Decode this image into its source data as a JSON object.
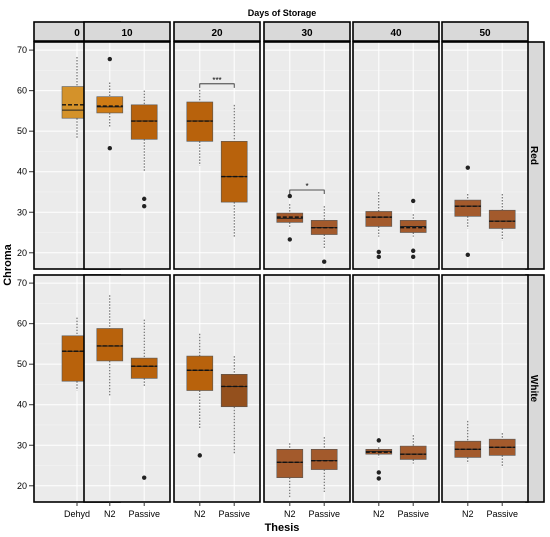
{
  "chart_data": {
    "type": "boxplot",
    "title": "Days of Storage",
    "xlabel": "Thesis",
    "ylabel": "Chroma",
    "ylim": [
      16,
      72
    ],
    "yticks": [
      20,
      30,
      40,
      50,
      60,
      70
    ],
    "grid": true,
    "legend": "none",
    "storage_days": [
      "0",
      "10",
      "20",
      "30",
      "40",
      "50"
    ],
    "rows": [
      "Red",
      "White"
    ],
    "colors": {
      "panel_bg": "#ebebeb",
      "grid": "#ffffff",
      "strip_bg": "#d9d9d9",
      "light_orange": "#d4922a",
      "orange": "#cf7b14",
      "dark_orange": "#b8620c",
      "brown": "#a35a2c",
      "dark_brown": "#94501d"
    },
    "panels": [
      {
        "day": "0",
        "row": "Red",
        "boxes": [
          {
            "thesis": "Dehyd",
            "color": "light_orange",
            "whisker_low": 48,
            "q1": 53.2,
            "median": 55.2,
            "mean": 56.5,
            "q3": 61,
            "whisker_high": 68.3,
            "outliers": []
          }
        ]
      },
      {
        "day": "10",
        "row": "Red",
        "boxes": [
          {
            "thesis": "N2",
            "color": "orange",
            "whisker_low": 51,
            "q1": 54.5,
            "median": 56,
            "mean": 56.2,
            "q3": 58.5,
            "whisker_high": 62,
            "outliers": [
              67.8,
              45.8
            ]
          },
          {
            "thesis": "Passive",
            "color": "dark_orange",
            "whisker_low": 40,
            "q1": 48,
            "median": 52.5,
            "mean": 52.5,
            "q3": 56.5,
            "whisker_high": 60,
            "outliers": [
              33.3,
              31.5
            ]
          }
        ]
      },
      {
        "day": "20",
        "row": "Red",
        "annotation": "***",
        "boxes": [
          {
            "thesis": "N2",
            "color": "dark_orange",
            "whisker_low": 41.5,
            "q1": 47.5,
            "median": 52.5,
            "mean": 52.5,
            "q3": 57.2,
            "whisker_high": 60.2,
            "outliers": []
          },
          {
            "thesis": "Passive",
            "color": "dark_orange",
            "whisker_low": 24,
            "q1": 32.5,
            "median": 38.8,
            "mean": 38.8,
            "q3": 47.5,
            "whisker_high": 56.5,
            "outliers": []
          }
        ]
      },
      {
        "day": "30",
        "row": "Red",
        "annotation": "*",
        "boxes": [
          {
            "thesis": "N2",
            "color": "brown",
            "whisker_low": 26,
            "q1": 27.5,
            "median": 28.5,
            "mean": 28.8,
            "q3": 29.8,
            "whisker_high": 32,
            "outliers": [
              34,
              23.3
            ]
          },
          {
            "thesis": "Passive",
            "color": "brown",
            "whisker_low": 21,
            "q1": 24.5,
            "median": 26.2,
            "mean": 26.2,
            "q3": 28,
            "whisker_high": 31.5,
            "outliers": [
              17.8
            ]
          }
        ]
      },
      {
        "day": "40",
        "row": "Red",
        "boxes": [
          {
            "thesis": "N2",
            "color": "brown",
            "whisker_low": 24,
            "q1": 26.5,
            "median": 28.8,
            "mean": 28.8,
            "q3": 30.2,
            "whisker_high": 35,
            "outliers": [
              20.2,
              19
            ]
          },
          {
            "thesis": "Passive",
            "color": "brown",
            "whisker_low": 24,
            "q1": 25,
            "median": 26.5,
            "mean": 26.2,
            "q3": 28,
            "whisker_high": 29.5,
            "outliers": [
              32.8,
              20.5,
              19
            ]
          }
        ]
      },
      {
        "day": "50",
        "row": "Red",
        "boxes": [
          {
            "thesis": "N2",
            "color": "brown",
            "whisker_low": 26,
            "q1": 29,
            "median": 31.5,
            "mean": 31.5,
            "q3": 33,
            "whisker_high": 34.5,
            "outliers": [
              41,
              19.5
            ]
          },
          {
            "thesis": "Passive",
            "color": "brown",
            "whisker_low": 23,
            "q1": 26,
            "median": 27.8,
            "mean": 27.8,
            "q3": 30.5,
            "whisker_high": 34.5,
            "outliers": []
          }
        ]
      },
      {
        "day": "0",
        "row": "White",
        "boxes": [
          {
            "thesis": "Dehyd",
            "color": "dark_orange",
            "whisker_low": 43.5,
            "q1": 45.8,
            "median": 53.2,
            "mean": 53.2,
            "q3": 57,
            "whisker_high": 61.5,
            "outliers": []
          }
        ]
      },
      {
        "day": "10",
        "row": "White",
        "boxes": [
          {
            "thesis": "N2",
            "color": "dark_orange",
            "whisker_low": 42,
            "q1": 50.8,
            "median": 54.5,
            "mean": 54.5,
            "q3": 58.8,
            "whisker_high": 67,
            "outliers": []
          },
          {
            "thesis": "Passive",
            "color": "dark_orange",
            "whisker_low": 44.5,
            "q1": 46.5,
            "median": 49.5,
            "mean": 49.5,
            "q3": 51.5,
            "whisker_high": 61,
            "outliers": [
              22
            ]
          }
        ]
      },
      {
        "day": "20",
        "row": "White",
        "boxes": [
          {
            "thesis": "N2",
            "color": "dark_orange",
            "whisker_low": 34,
            "q1": 43.5,
            "median": 48.5,
            "mean": 48.5,
            "q3": 52,
            "whisker_high": 57.5,
            "outliers": [
              27.5
            ]
          },
          {
            "thesis": "Passive",
            "color": "dark_brown",
            "whisker_low": 28,
            "q1": 39.5,
            "median": 44.5,
            "mean": 44.5,
            "q3": 47.5,
            "whisker_high": 52,
            "outliers": []
          }
        ]
      },
      {
        "day": "30",
        "row": "White",
        "boxes": [
          {
            "thesis": "N2",
            "color": "brown",
            "whisker_low": 17,
            "q1": 22,
            "median": 25.8,
            "mean": 25.8,
            "q3": 29,
            "whisker_high": 30.5,
            "outliers": []
          },
          {
            "thesis": "Passive",
            "color": "brown",
            "whisker_low": 18.5,
            "q1": 24,
            "median": 26.2,
            "mean": 26.2,
            "q3": 29,
            "whisker_high": 32,
            "outliers": []
          }
        ]
      },
      {
        "day": "40",
        "row": "White",
        "boxes": [
          {
            "thesis": "N2",
            "color": "brown",
            "whisker_low": 27,
            "q1": 27.8,
            "median": 28.5,
            "mean": 28.3,
            "q3": 29,
            "whisker_high": 29.5,
            "outliers": [
              31.2,
              23.3,
              21.8
            ]
          },
          {
            "thesis": "Passive",
            "color": "brown",
            "whisker_low": 25.5,
            "q1": 26.5,
            "median": 27.8,
            "mean": 27.8,
            "q3": 29.8,
            "whisker_high": 32.5,
            "outliers": []
          }
        ]
      },
      {
        "day": "50",
        "row": "White",
        "boxes": [
          {
            "thesis": "N2",
            "color": "brown",
            "whisker_low": 25.5,
            "q1": 27,
            "median": 29,
            "mean": 29,
            "q3": 31,
            "whisker_high": 36,
            "outliers": []
          },
          {
            "thesis": "Passive",
            "color": "brown",
            "whisker_low": 24.5,
            "q1": 27.5,
            "median": 29.5,
            "mean": 29.5,
            "q3": 31.5,
            "whisker_high": 33,
            "outliers": []
          }
        ]
      }
    ]
  }
}
